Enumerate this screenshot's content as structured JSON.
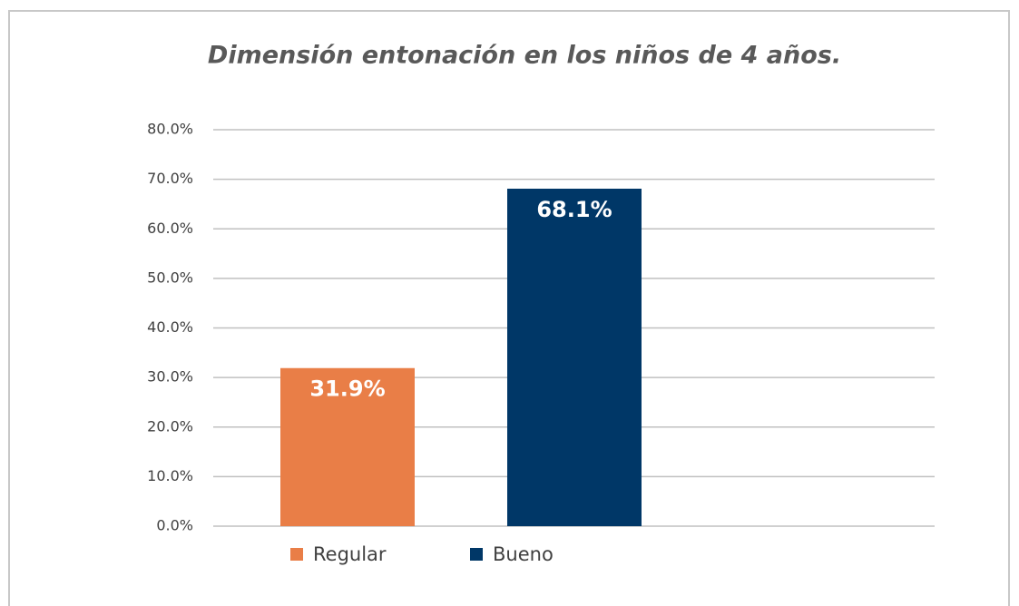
{
  "chart_data": {
    "type": "bar",
    "title": "Dimensión entonación en los niños de 4 años.",
    "categories": [
      null
    ],
    "series": [
      {
        "name": "Regular",
        "color": "#e97e47",
        "values": [
          31.9
        ],
        "value_labels": [
          "31.9%"
        ]
      },
      {
        "name": "Bueno",
        "color": "#003767",
        "values": [
          68.1
        ],
        "value_labels": [
          "68.1%"
        ]
      }
    ],
    "ylim": [
      0,
      80
    ],
    "yticks": [
      {
        "value": 0,
        "label": "0.0%"
      },
      {
        "value": 10,
        "label": "10.0%"
      },
      {
        "value": 20,
        "label": "20.0%"
      },
      {
        "value": 30,
        "label": "30.0%"
      },
      {
        "value": 40,
        "label": "40.0%"
      },
      {
        "value": 50,
        "label": "50.0%"
      },
      {
        "value": 60,
        "label": "60.0%"
      },
      {
        "value": 70,
        "label": "70.0%"
      },
      {
        "value": 80,
        "label": "80.0%"
      }
    ],
    "grid": true,
    "legend": "bottom"
  }
}
